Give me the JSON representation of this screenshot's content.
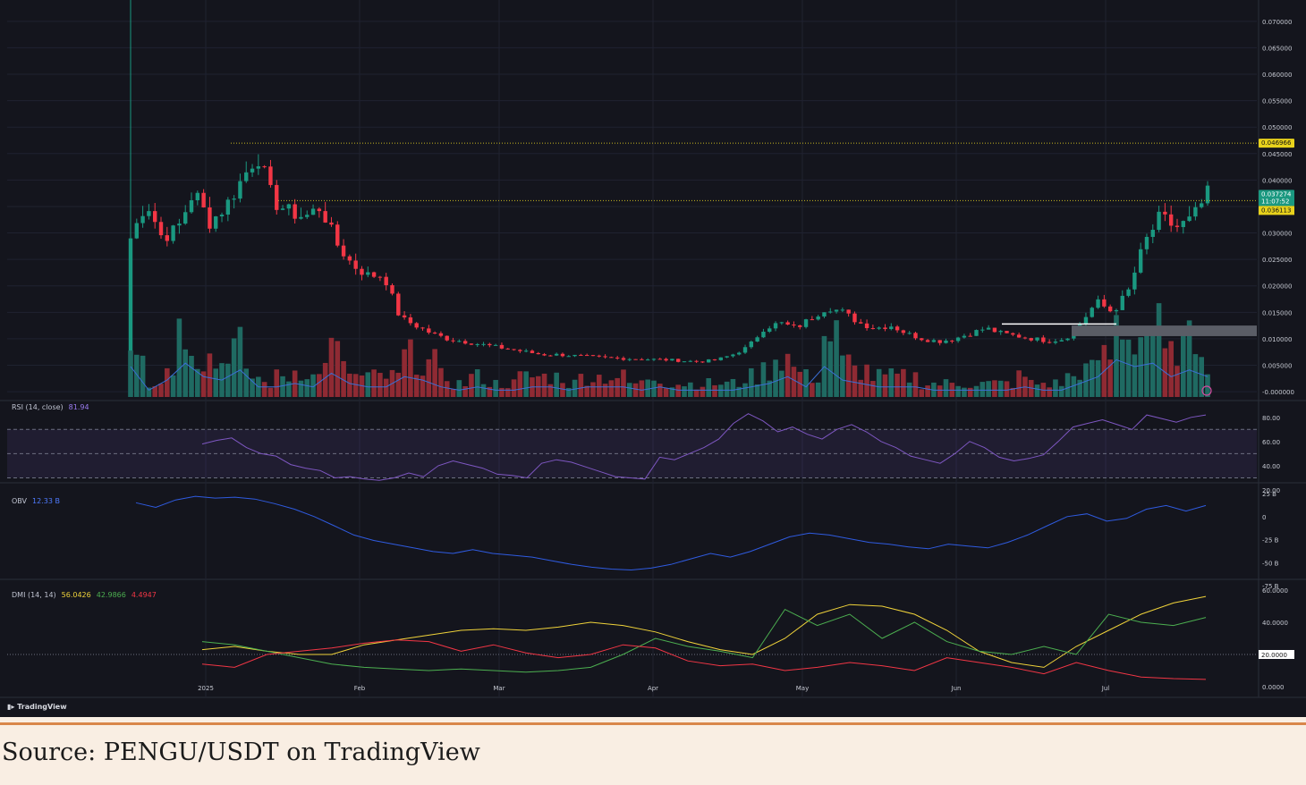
{
  "caption": "Source: PENGU/USDT on TradingView",
  "branding": "TradingView",
  "colors": {
    "background": "#14151d",
    "grid": "#1f2230",
    "up": "#1a9880",
    "down": "#f23645",
    "volUp": "#1f6a62",
    "volDown": "#8f2a33",
    "volMA": "#3b6fd6",
    "rsi": "#7e57c2",
    "obv": "#2f5be0",
    "diPlus": "#4caf50",
    "diMinus": "#f23645",
    "adx": "#f0d33a",
    "priceLine": "#c8b820",
    "axisText": "#c7cad3"
  },
  "panes": {
    "rsi": {
      "label": "RSI (14, close)",
      "value": "81.94"
    },
    "obv": {
      "label": "OBV",
      "value": "12.33 B"
    },
    "dmi": {
      "label": "DMI (14, 14)",
      "values": [
        "56.0426",
        "42.9866",
        "4.4947"
      ]
    }
  },
  "price_tags": {
    "resistance": "0.046966",
    "last_price": "0.037274",
    "countdown": "11:07:52",
    "support": "0.036113"
  },
  "chart_data": [
    {
      "type": "candlestick",
      "pair": "PENGU/USDT",
      "x_labels": [
        "2025",
        "Feb",
        "Mar",
        "Apr",
        "May",
        "Jun",
        "Jul"
      ],
      "y_ticks": [
        "0.070000",
        "0.065000",
        "0.060000",
        "0.055000",
        "0.050000",
        "0.045000",
        "0.040000",
        "0.035000",
        "0.030000",
        "0.025000",
        "0.020000",
        "0.015000",
        "0.010000",
        "0.005000",
        "-0.000000"
      ],
      "ylim": [
        -0.001,
        0.072
      ],
      "horizontal_levels": [
        0.046966,
        0.036113
      ],
      "close_path": [
        0.029,
        0.036,
        0.029,
        0.031,
        0.038,
        0.032,
        0.035,
        0.04,
        0.045,
        0.036,
        0.034,
        0.033,
        0.035,
        0.028,
        0.024,
        0.022,
        0.022,
        0.014,
        0.0125,
        0.011,
        0.01,
        0.0095,
        0.009,
        0.0085,
        0.008,
        0.0075,
        0.007,
        0.007,
        0.0068,
        0.0066,
        0.0064,
        0.0063,
        0.0062,
        0.0061,
        0.006,
        0.0058,
        0.0057,
        0.006,
        0.007,
        0.0085,
        0.012,
        0.013,
        0.012,
        0.014,
        0.016,
        0.015,
        0.013,
        0.012,
        0.0125,
        0.011,
        0.01,
        0.0095,
        0.01,
        0.011,
        0.012,
        0.011,
        0.0105,
        0.01,
        0.0096,
        0.01,
        0.013,
        0.017,
        0.015,
        0.019,
        0.028,
        0.033,
        0.031,
        0.0325,
        0.0373
      ]
    },
    {
      "type": "bar",
      "name": "Volume",
      "values": [
        9,
        2,
        5,
        10,
        6,
        5,
        8,
        3,
        2,
        3,
        4,
        3,
        7,
        4,
        3,
        3,
        3,
        6,
        5,
        3,
        2,
        3,
        2,
        2,
        3,
        3,
        3,
        2,
        3,
        3,
        3,
        2,
        3,
        2,
        2,
        2,
        2,
        2,
        3,
        4,
        6,
        4,
        3,
        9,
        5,
        4,
        3,
        3,
        3,
        2,
        2,
        2,
        2,
        2,
        2,
        3,
        2,
        2,
        3,
        4,
        6,
        11,
        9,
        10,
        6,
        8,
        9,
        6
      ]
    },
    {
      "type": "line",
      "name": "RSI",
      "ylim": [
        20,
        85
      ],
      "y_ticks": [
        "80.00",
        "60.00",
        "40.00",
        "20.00"
      ],
      "levels": [
        70,
        50,
        30
      ],
      "values": [
        58,
        61,
        63,
        55,
        50,
        48,
        41,
        38,
        36,
        30,
        31,
        29,
        28,
        30,
        34,
        31,
        40,
        44,
        41,
        38,
        33,
        32,
        30,
        42,
        45,
        43,
        39,
        35,
        31,
        30,
        29,
        47,
        45,
        50,
        55,
        62,
        75,
        83,
        77,
        68,
        72,
        66,
        62,
        70,
        74,
        68,
        60,
        55,
        48,
        45,
        42,
        50,
        60,
        55,
        47,
        44,
        46,
        49,
        60,
        72,
        75,
        78,
        74,
        70,
        82,
        79,
        76,
        80,
        81.94
      ]
    },
    {
      "type": "line",
      "name": "OBV",
      "ylim": [
        -75,
        25
      ],
      "y_ticks": [
        "25 B",
        "0",
        "-25 B",
        "-50 B",
        "-75 B"
      ],
      "values": [
        15,
        10,
        18,
        22,
        20,
        21,
        19,
        14,
        8,
        0,
        -10,
        -20,
        -26,
        -30,
        -34,
        -38,
        -40,
        -36,
        -40,
        -42,
        -44,
        -48,
        -52,
        -55,
        -57,
        -58,
        -56,
        -52,
        -46,
        -40,
        -44,
        -38,
        -30,
        -22,
        -18,
        -20,
        -24,
        -28,
        -30,
        -33,
        -35,
        -30,
        -32,
        -34,
        -28,
        -20,
        -10,
        0,
        3,
        -5,
        -2,
        8,
        12,
        6,
        12
      ]
    },
    {
      "type": "line",
      "name": "DMI",
      "ylim": [
        0,
        60
      ],
      "y_ticks": [
        "60.0000",
        "40.0000",
        "20.0000",
        "0.0000"
      ],
      "levels": [
        20
      ],
      "series": [
        {
          "name": "ADX",
          "values": [
            23,
            25,
            22,
            20,
            20,
            26,
            29,
            32,
            35,
            36,
            35,
            37,
            40,
            38,
            34,
            28,
            23,
            20,
            30,
            45,
            51,
            50,
            45,
            35,
            22,
            15,
            12,
            25,
            35,
            45,
            52,
            56.0426
          ]
        },
        {
          "name": "+DI",
          "values": [
            28,
            26,
            22,
            18,
            14,
            12,
            11,
            10,
            11,
            10,
            9,
            10,
            12,
            20,
            30,
            25,
            22,
            18,
            48,
            38,
            45,
            30,
            40,
            28,
            22,
            20,
            25,
            20,
            45,
            40,
            38,
            42.9866
          ]
        },
        {
          "name": "-DI",
          "values": [
            14,
            12,
            20,
            22,
            24,
            27,
            29,
            28,
            22,
            26,
            21,
            18,
            20,
            26,
            24,
            16,
            13,
            14,
            10,
            12,
            15,
            13,
            10,
            18,
            15,
            12,
            8,
            15,
            10,
            6,
            5,
            4.4947
          ]
        }
      ]
    }
  ]
}
